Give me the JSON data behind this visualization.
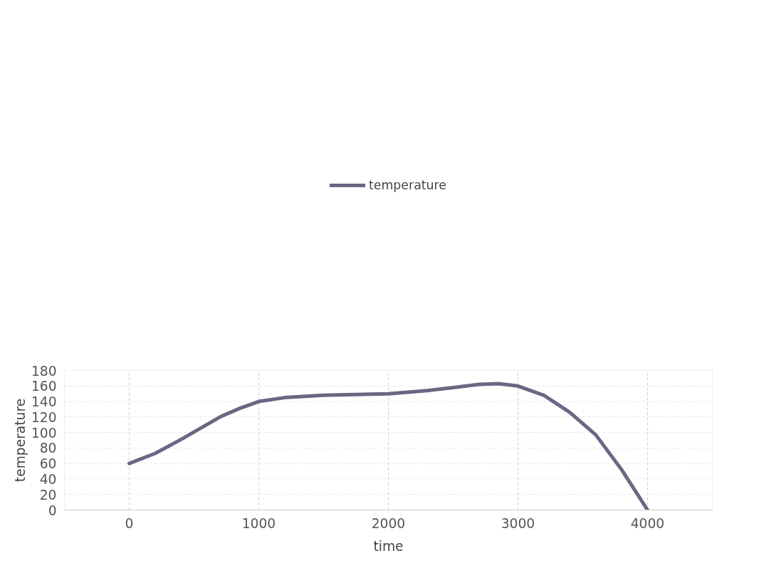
{
  "chart_data": {
    "type": "line",
    "xlabel": "time",
    "ylabel": "temperature",
    "x": [
      0,
      200,
      400,
      700,
      850,
      1000,
      1200,
      1500,
      2000,
      2300,
      2500,
      2700,
      2850,
      3000,
      3200,
      3400,
      3600,
      3800,
      4000
    ],
    "series": [
      {
        "name": "temperature",
        "color": "#6e6484",
        "values": [
          60,
          73,
          91,
          120,
          131,
          140,
          145,
          148,
          150,
          154,
          158,
          162,
          163,
          160,
          148,
          126,
          97,
          52,
          0
        ]
      }
    ],
    "xlim": [
      -500,
      4500
    ],
    "xticks": [
      0,
      1000,
      2000,
      3000,
      4000
    ],
    "ylim": [
      0,
      180
    ],
    "yticks": [
      0,
      20,
      40,
      60,
      80,
      100,
      120,
      140,
      160,
      180
    ],
    "grid": true,
    "legend": "top",
    "marker": "none",
    "line_style": "solid"
  }
}
